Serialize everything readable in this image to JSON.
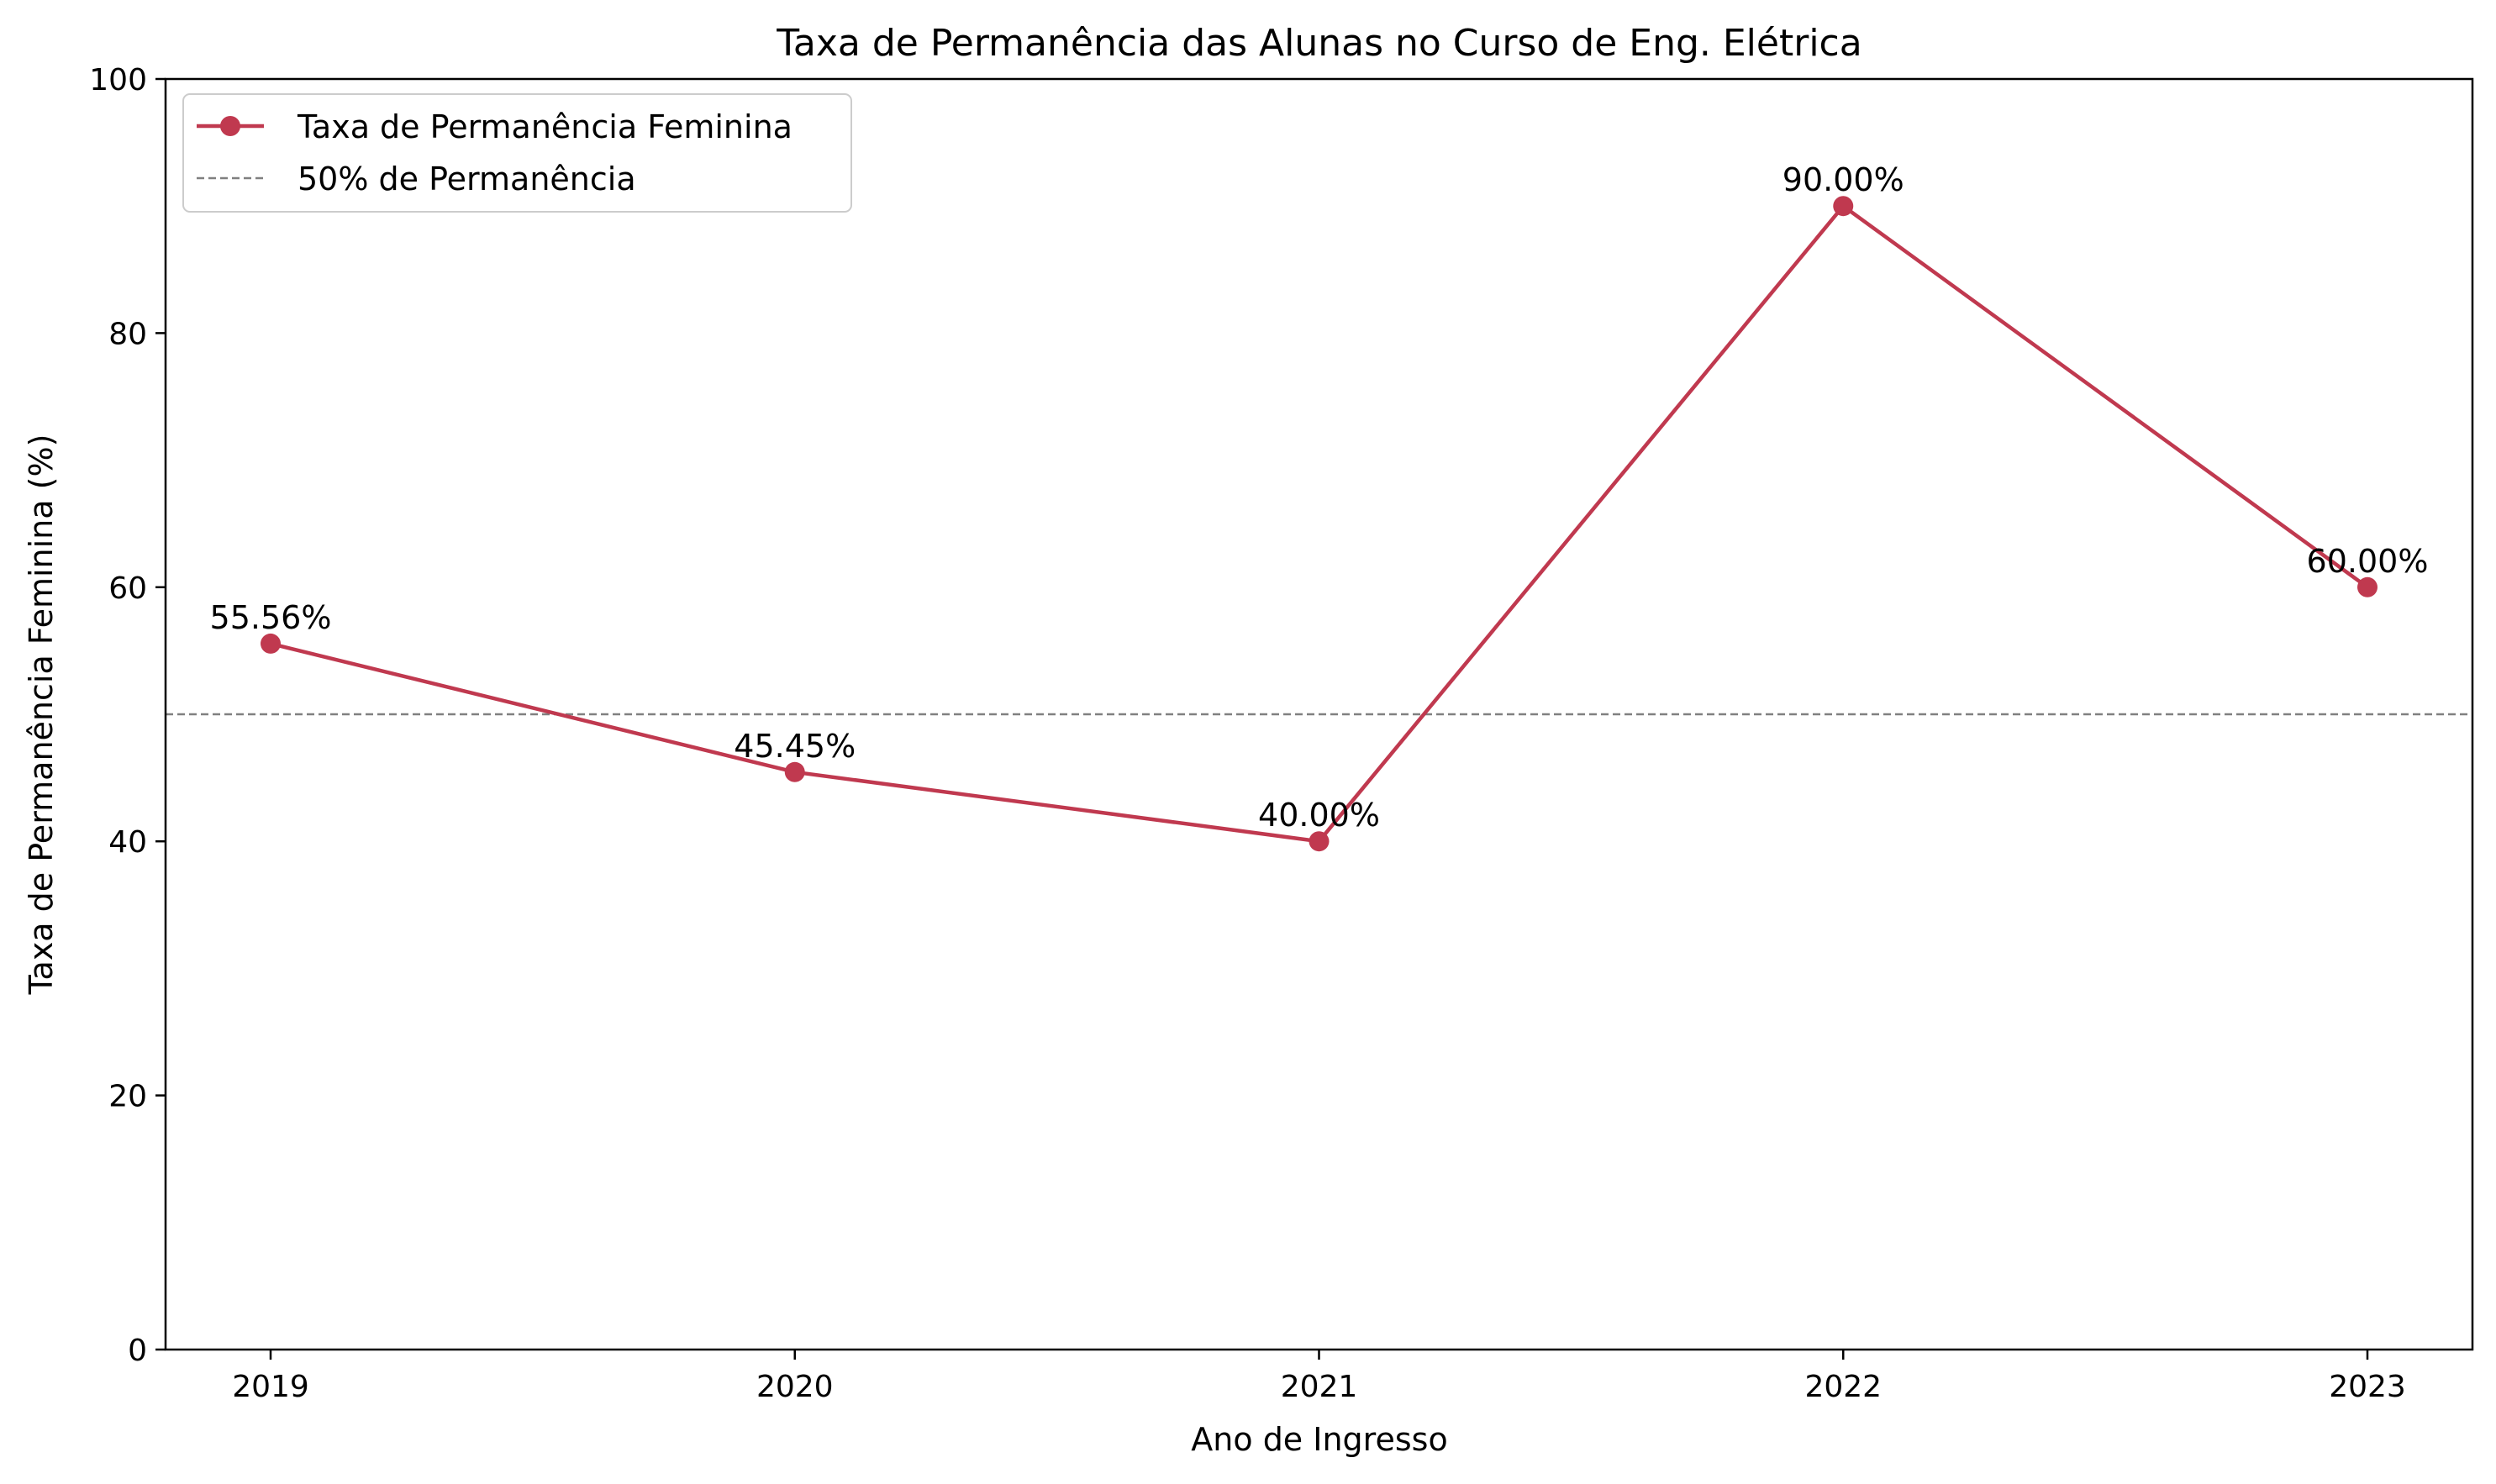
{
  "chart_data": {
    "type": "line",
    "title": "Taxa de Permanência das Alunas no Curso de Eng. Elétrica",
    "xlabel": "Ano de Ingresso",
    "ylabel": "Taxa de Permanência Feminina (%)",
    "categories": [
      "2019",
      "2020",
      "2021",
      "2022",
      "2023"
    ],
    "ylim": [
      0,
      100
    ],
    "yticks": [
      "0",
      "20",
      "40",
      "60",
      "80",
      "100"
    ],
    "grid": false,
    "legend_position": "top-left",
    "series": [
      {
        "name": "Taxa de Permanência Feminina",
        "values": [
          55.56,
          45.45,
          40.0,
          90.0,
          60.0
        ],
        "labels": [
          "55.56%",
          "45.45%",
          "40.00%",
          "90.00%",
          "60.00%"
        ],
        "color": "#c0394f",
        "marker": "circle"
      }
    ],
    "reference_lines": [
      {
        "name": "50% de Permanência",
        "y": 50,
        "color": "#808080",
        "style": "dashed"
      }
    ]
  }
}
